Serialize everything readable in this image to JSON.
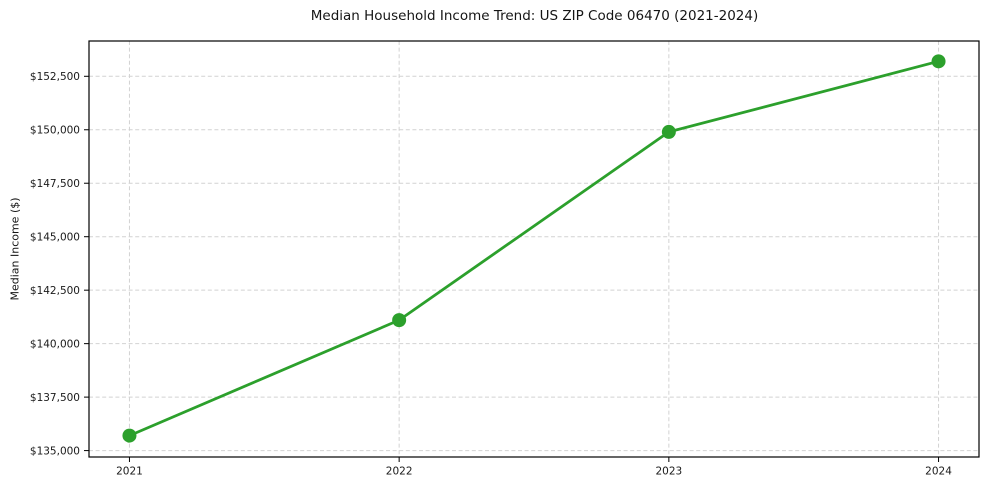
{
  "chart_data": {
    "type": "line",
    "title": "Median Household Income Trend: US ZIP Code 06470 (2021-2024)",
    "ylabel": "Median Income ($)",
    "xlabel": "",
    "x": [
      2021,
      2022,
      2023,
      2024
    ],
    "xtick_labels": [
      "2021",
      "2022",
      "2023",
      "2024"
    ],
    "series": [
      {
        "name": "Median Household Income",
        "values": [
          135700,
          141100,
          149900,
          153200
        ],
        "color": "#2ca02c",
        "marker": "circle"
      }
    ],
    "yticks": [
      135000,
      137500,
      140000,
      142500,
      145000,
      147500,
      150000,
      152500
    ],
    "ytick_labels": [
      "$135,000",
      "$137,500",
      "$140,000",
      "$142,500",
      "$145,000",
      "$147,500",
      "$150,000",
      "$152,500"
    ],
    "xlim": [
      2020.85,
      2024.15
    ],
    "ylim": [
      134700,
      154150
    ],
    "grid": true,
    "grid_style": "dashed",
    "legend": "none",
    "colors": {
      "line": "#2ca02c",
      "grid": "#d2d2d2",
      "axis": "#000000",
      "text": "#1a1a1a",
      "background": "#ffffff"
    }
  }
}
